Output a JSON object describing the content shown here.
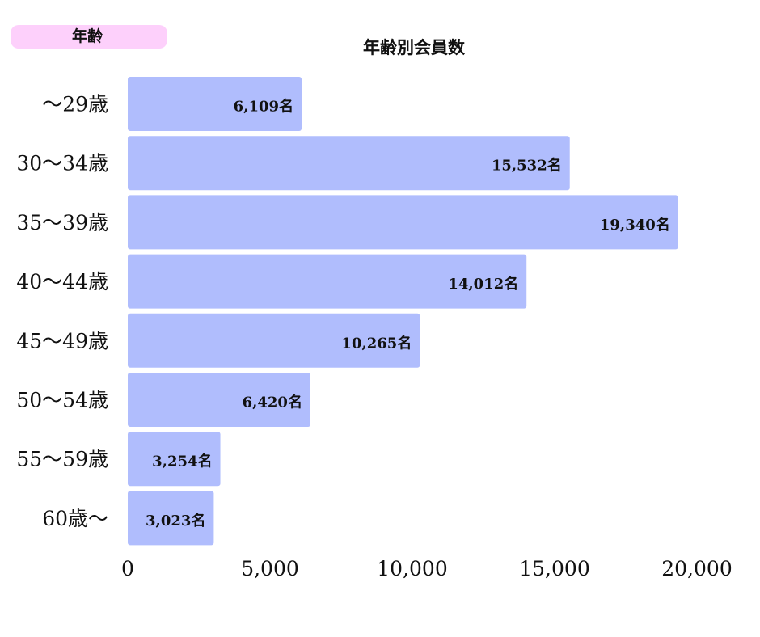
{
  "header": {
    "badge_label": "年齢",
    "badge_color": "#fdd0fb"
  },
  "chart_data": {
    "type": "bar",
    "orientation": "horizontal",
    "title": "年齢別会員数",
    "categories": [
      "～29歳",
      "30～34歳",
      "35～39歳",
      "40～44歳",
      "45～49歳",
      "50～54歳",
      "55～59歳",
      "60歳～"
    ],
    "values": [
      6109,
      15532,
      19340,
      14012,
      10265,
      6420,
      3254,
      3023
    ],
    "value_labels": [
      "6,109名",
      "15,532名",
      "19,340名",
      "14,012名",
      "10,265名",
      "6,420名",
      "3,254名",
      "3,023名"
    ],
    "xlim": [
      0,
      20000
    ],
    "xticks": [
      0,
      5000,
      10000,
      15000,
      20000
    ],
    "xtick_labels": [
      "0",
      "5,000",
      "10,000",
      "15,000",
      "20,000"
    ],
    "bar_color": "#b0bdfd",
    "grid": false,
    "legend": "none"
  }
}
